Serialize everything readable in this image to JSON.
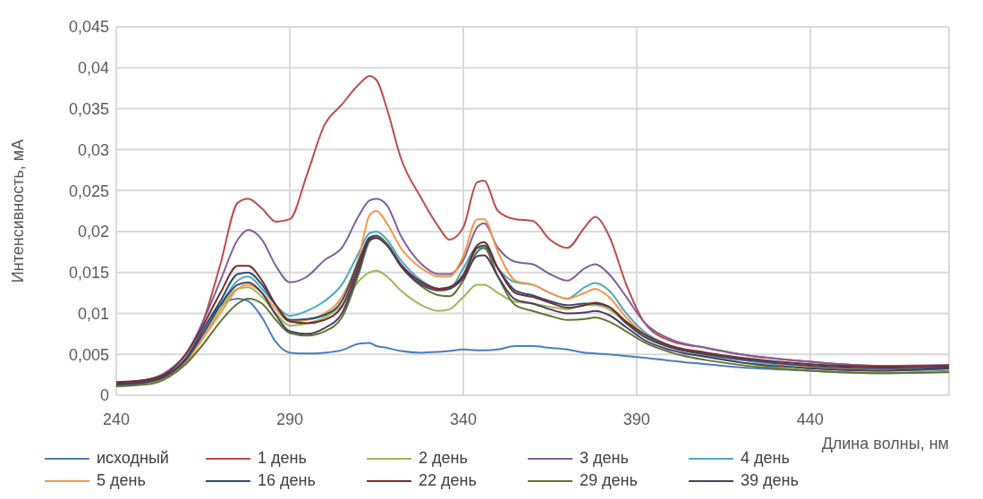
{
  "chart_data": {
    "type": "line",
    "xlabel": "Длина волны, нм",
    "ylabel": "Интенсивность, мА",
    "x": [
      240,
      250,
      255,
      260,
      265,
      270,
      275,
      278,
      282,
      286,
      290,
      295,
      300,
      305,
      310,
      313,
      315,
      318,
      322,
      328,
      333,
      336,
      340,
      344,
      346,
      350,
      355,
      360,
      365,
      370,
      375,
      378,
      382,
      387,
      392,
      400,
      410,
      420,
      440,
      460,
      480
    ],
    "xlim": [
      240,
      480
    ],
    "xticks": [
      240,
      290,
      340,
      390,
      440
    ],
    "ylim": [
      0,
      0.045
    ],
    "yticks": [
      0,
      {
        "value": 0.005,
        "label": "0,005"
      },
      {
        "value": 0.01,
        "label": "0,01"
      },
      {
        "value": 0.015,
        "label": "0,015"
      },
      {
        "value": 0.02,
        "label": "0,02"
      },
      {
        "value": 0.025,
        "label": "0,025"
      },
      {
        "value": 0.03,
        "label": "0,03"
      },
      {
        "value": 0.035,
        "label": "0,035"
      },
      {
        "value": 0.04,
        "label": "0,04"
      },
      {
        "value": 0.045,
        "label": "0,045"
      }
    ],
    "grid": true,
    "legend": "bottom",
    "marker": "none",
    "line_style": "solid",
    "series": [
      {
        "name": "исходный",
        "color": "#4a7ebb",
        "values": [
          null,
          null,
          0.0025,
          0.004,
          0.008,
          0.011,
          0.0118,
          0.0115,
          0.0095,
          0.0065,
          0.0052,
          0.0051,
          0.0052,
          0.0055,
          0.0063,
          0.0064,
          0.006,
          0.0058,
          0.0054,
          0.0052,
          0.0053,
          0.0054,
          0.0056,
          0.0055,
          0.0055,
          0.0056,
          0.006,
          0.006,
          0.0058,
          0.0056,
          0.0052,
          0.0051,
          0.005,
          0.0048,
          0.0046,
          0.0042,
          0.0038,
          0.0034,
          0.003,
          0.0027,
          0.003
        ]
      },
      {
        "name": "1 день",
        "color": "#be4b48",
        "values": [
          0.0015,
          0.002,
          0.003,
          0.005,
          0.009,
          0.016,
          0.0235,
          0.024,
          0.0228,
          0.0212,
          0.0215,
          0.027,
          0.033,
          0.0355,
          0.038,
          0.039,
          0.0385,
          0.035,
          0.029,
          0.024,
          0.0205,
          0.019,
          0.0205,
          0.026,
          0.0262,
          0.0225,
          0.0215,
          0.0213,
          0.019,
          0.018,
          0.0205,
          0.0218,
          0.0195,
          0.0135,
          0.009,
          0.0066,
          0.0058,
          0.005,
          0.0041,
          0.0036,
          0.0036
        ]
      },
      {
        "name": "2 день",
        "color": "#98b954",
        "values": [
          0.0012,
          0.0016,
          0.0024,
          0.004,
          0.007,
          0.0105,
          0.013,
          0.0132,
          0.012,
          0.01,
          0.0085,
          0.0088,
          0.0095,
          0.011,
          0.014,
          0.015,
          0.0152,
          0.0145,
          0.0128,
          0.011,
          0.0103,
          0.0105,
          0.012,
          0.0135,
          0.0135,
          0.0125,
          0.0114,
          0.0112,
          0.0108,
          0.0105,
          0.011,
          0.011,
          0.0105,
          0.0088,
          0.0072,
          0.006,
          0.0048,
          0.004,
          0.003,
          0.0027,
          0.0029
        ]
      },
      {
        "name": "3 день",
        "color": "#7d60a0",
        "values": [
          0.0015,
          0.002,
          0.003,
          0.005,
          0.009,
          0.014,
          0.019,
          0.0202,
          0.019,
          0.0158,
          0.0138,
          0.0145,
          0.0165,
          0.018,
          0.022,
          0.0238,
          0.024,
          0.0232,
          0.0195,
          0.016,
          0.0148,
          0.0148,
          0.0165,
          0.0205,
          0.021,
          0.018,
          0.0163,
          0.016,
          0.0148,
          0.014,
          0.0155,
          0.016,
          0.0148,
          0.012,
          0.009,
          0.0068,
          0.0058,
          0.005,
          0.0041,
          0.0036,
          0.0037
        ]
      },
      {
        "name": "4 день",
        "color": "#46aac5",
        "values": [
          null,
          null,
          0.0025,
          0.0045,
          0.0075,
          0.011,
          0.014,
          0.0145,
          0.013,
          0.011,
          0.0097,
          0.0103,
          0.0115,
          0.0135,
          0.0175,
          0.0198,
          0.02,
          0.019,
          0.0165,
          0.014,
          0.013,
          0.013,
          0.0155,
          0.018,
          0.018,
          0.0155,
          0.0138,
          0.0135,
          0.0125,
          0.0118,
          0.0132,
          0.0137,
          0.0128,
          0.01,
          0.0078,
          0.006,
          0.005,
          0.0043,
          0.0033,
          0.003,
          0.0032
        ]
      },
      {
        "name": "5 день",
        "color": "#f79646",
        "values": [
          null,
          null,
          0.0025,
          0.0042,
          0.007,
          0.01,
          0.013,
          0.0135,
          0.0125,
          0.0105,
          0.009,
          0.0092,
          0.01,
          0.012,
          0.017,
          0.022,
          0.0225,
          0.021,
          0.018,
          0.0155,
          0.0145,
          0.0145,
          0.017,
          0.0215,
          0.0215,
          0.0175,
          0.014,
          0.0135,
          0.0125,
          0.0118,
          0.0125,
          0.013,
          0.012,
          0.0095,
          0.0075,
          0.006,
          0.0052,
          0.0045,
          0.0035,
          0.0032,
          0.0032
        ]
      },
      {
        "name": "16 день",
        "color": "#2c4d75",
        "values": [
          0.0014,
          0.0018,
          0.0026,
          0.0045,
          0.008,
          0.0115,
          0.0148,
          0.015,
          0.0135,
          0.011,
          0.0092,
          0.0093,
          0.0098,
          0.0115,
          0.0165,
          0.0193,
          0.0195,
          0.0185,
          0.016,
          0.0138,
          0.013,
          0.0132,
          0.0145,
          0.018,
          0.0183,
          0.0155,
          0.0128,
          0.0122,
          0.0115,
          0.011,
          0.0112,
          0.0112,
          0.0108,
          0.0088,
          0.0072,
          0.0058,
          0.005,
          0.0044,
          0.0036,
          0.0033,
          0.0034
        ]
      },
      {
        "name": "22 день",
        "color": "#772c2a",
        "values": [
          0.0016,
          0.002,
          0.0028,
          0.005,
          0.0085,
          0.0125,
          0.0158,
          0.0158,
          0.014,
          0.011,
          0.009,
          0.0088,
          0.0092,
          0.0108,
          0.016,
          0.0191,
          0.0193,
          0.0185,
          0.016,
          0.0138,
          0.013,
          0.0132,
          0.0147,
          0.0183,
          0.0187,
          0.0155,
          0.0125,
          0.012,
          0.0113,
          0.0107,
          0.011,
          0.0113,
          0.0108,
          0.009,
          0.0075,
          0.006,
          0.0052,
          0.0046,
          0.0038,
          0.0035,
          0.0036
        ]
      },
      {
        "name": "29 день",
        "color": "#5f7530",
        "values": [
          0.0011,
          0.0014,
          0.0022,
          0.0038,
          0.0062,
          0.009,
          0.0112,
          0.0118,
          0.0112,
          0.0092,
          0.0076,
          0.0073,
          0.0078,
          0.0095,
          0.015,
          0.0188,
          0.0193,
          0.0185,
          0.0158,
          0.0133,
          0.0122,
          0.0121,
          0.014,
          0.0175,
          0.018,
          0.0145,
          0.011,
          0.0103,
          0.0097,
          0.0092,
          0.0093,
          0.0095,
          0.009,
          0.0078,
          0.0065,
          0.0052,
          0.0043,
          0.0037,
          0.003,
          0.0027,
          0.0028
        ]
      },
      {
        "name": "39 день",
        "color": "#4d3b62",
        "values": [
          0.0013,
          0.0017,
          0.0025,
          0.0043,
          0.0075,
          0.011,
          0.0135,
          0.0138,
          0.0125,
          0.0098,
          0.0078,
          0.0075,
          0.0082,
          0.01,
          0.0155,
          0.019,
          0.0192,
          0.0183,
          0.0158,
          0.0135,
          0.0128,
          0.013,
          0.0143,
          0.017,
          0.0171,
          0.0145,
          0.0117,
          0.0112,
          0.0105,
          0.01,
          0.0101,
          0.0103,
          0.0098,
          0.0083,
          0.0068,
          0.0055,
          0.0047,
          0.004,
          0.0033,
          0.003,
          0.0033
        ]
      }
    ]
  }
}
